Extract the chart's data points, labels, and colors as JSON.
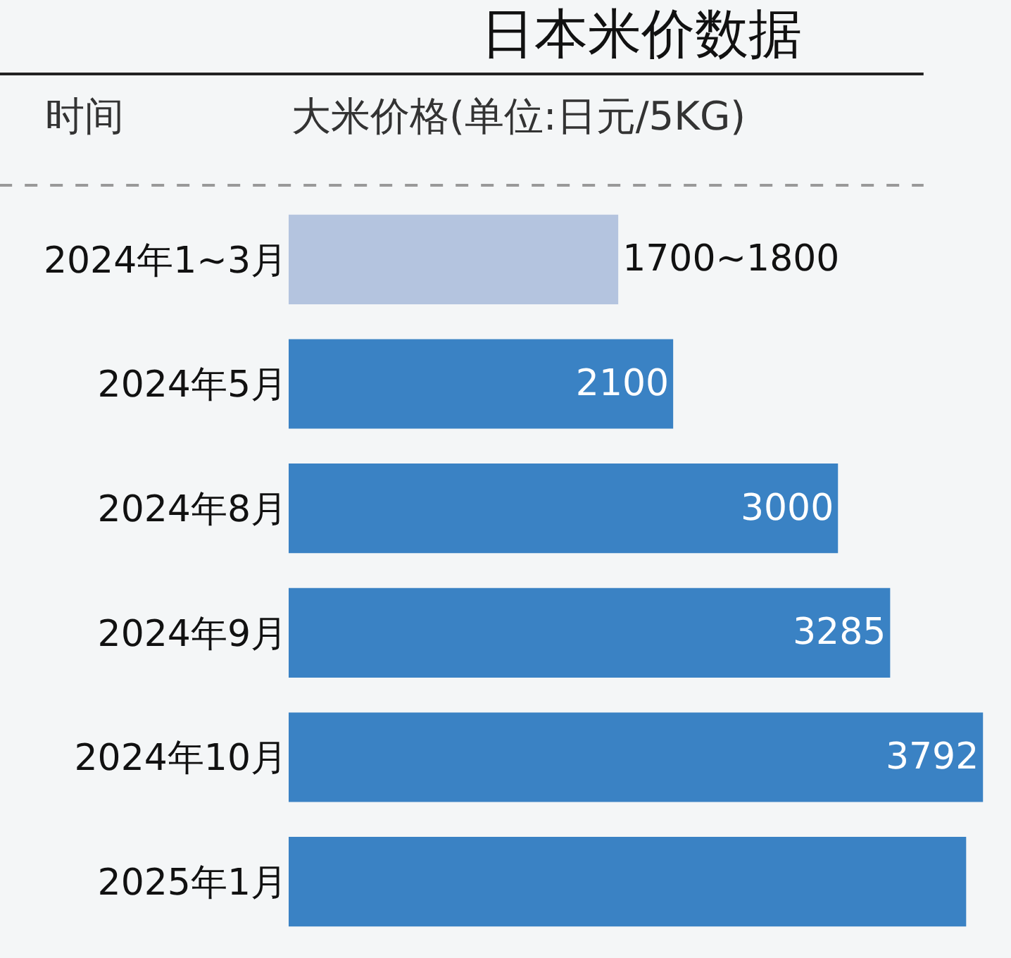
{
  "chart_data": {
    "type": "bar",
    "orientation": "horizontal",
    "title": "日本米价数据",
    "ylabel": "时间",
    "xlabel": "大米价格(单位:日元/5KG)",
    "categories": [
      "2024年1~3月",
      "2024年5月",
      "2024年8月",
      "2024年9月",
      "2024年10月",
      "2025年1月"
    ],
    "values": [
      1800,
      2100,
      3000,
      3285,
      3792,
      3700
    ],
    "value_labels": [
      "1700~1800",
      "2100",
      "3000",
      "3285",
      "3792",
      null
    ],
    "colors": [
      "#b4c4df",
      "#3a82c4",
      "#3a82c4",
      "#3a82c4",
      "#3a82c4",
      "#3a82c4"
    ],
    "grid": false,
    "legend": false
  }
}
